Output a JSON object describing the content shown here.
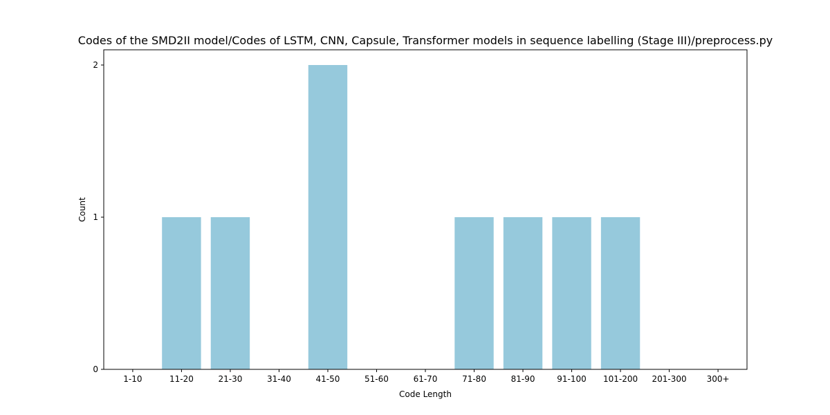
{
  "chart_data": {
    "type": "bar",
    "title": "Codes of the SMD2II model/Codes of LSTM, CNN, Capsule, Transformer models in sequence labelling (Stage III)/preprocess.py",
    "xlabel": "Code Length",
    "ylabel": "Count",
    "categories": [
      "1-10",
      "11-20",
      "21-30",
      "31-40",
      "41-50",
      "51-60",
      "61-70",
      "71-80",
      "81-90",
      "91-100",
      "101-200",
      "201-300",
      "300+"
    ],
    "values": [
      0,
      1,
      1,
      0,
      2,
      0,
      0,
      1,
      1,
      1,
      1,
      0,
      0
    ],
    "ylim": [
      0,
      2.1
    ],
    "yticks": [
      0,
      1,
      2
    ],
    "grid": false,
    "bar_color": "#96c9dc"
  }
}
